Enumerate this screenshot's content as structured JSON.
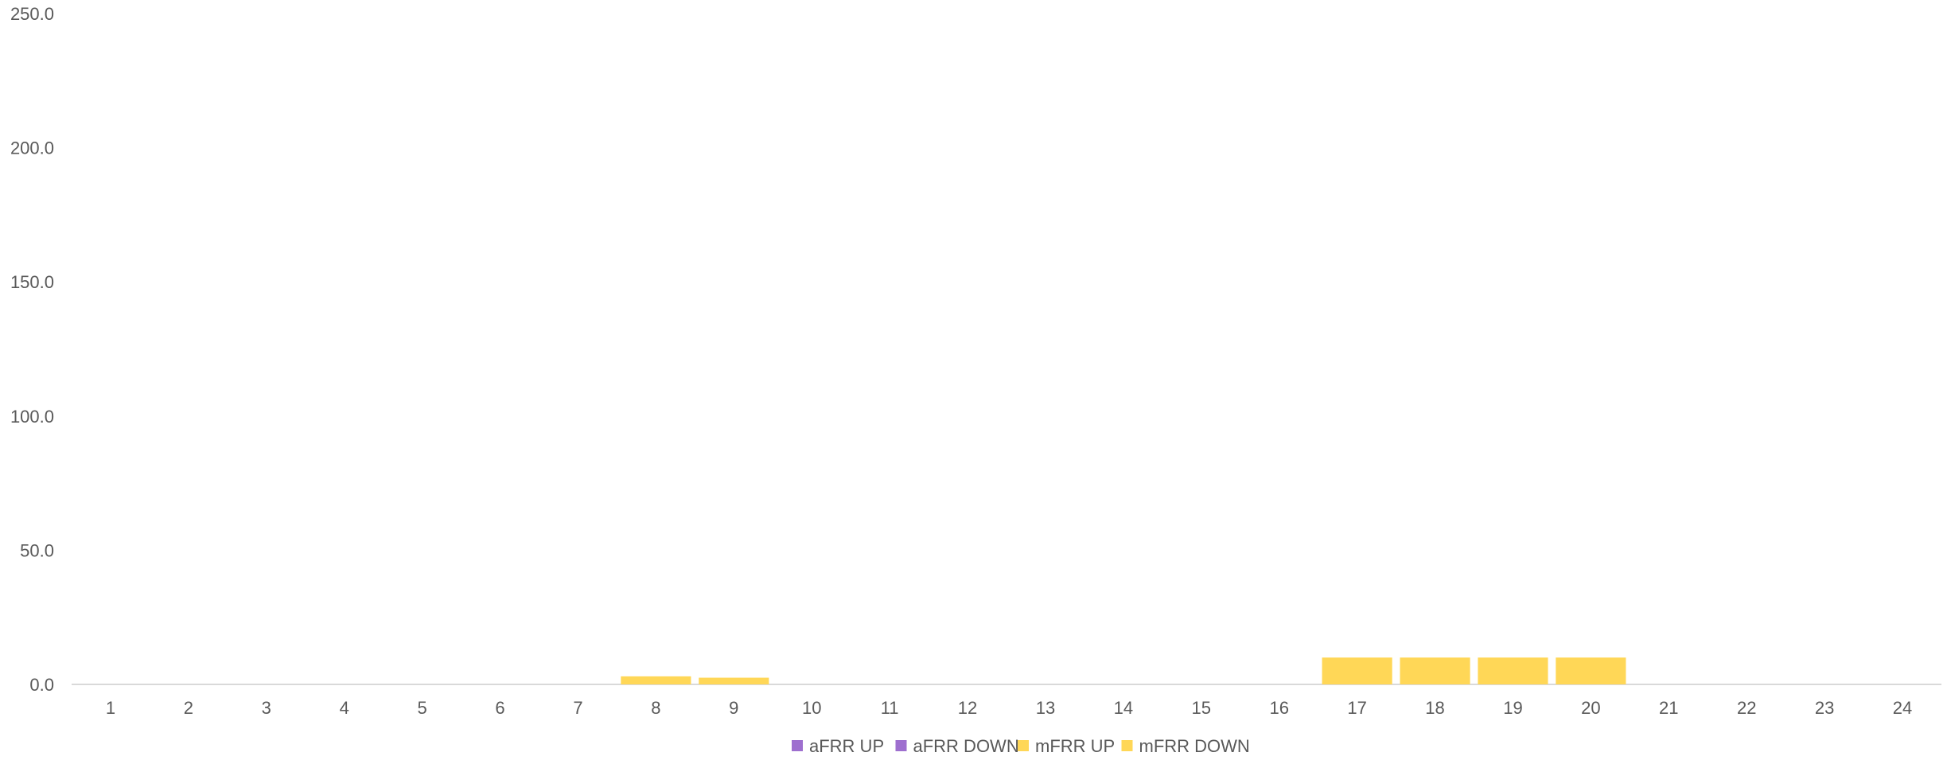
{
  "chart_data": {
    "type": "bar",
    "stacked": true,
    "categories": [
      "1",
      "2",
      "3",
      "4",
      "5",
      "6",
      "7",
      "8",
      "9",
      "10",
      "11",
      "12",
      "13",
      "14",
      "15",
      "16",
      "17",
      "18",
      "19",
      "20",
      "21",
      "22",
      "23",
      "24"
    ],
    "series": [
      {
        "name": "aFRR UP",
        "color": "#9e6fcf",
        "values": [
          0,
          0,
          0,
          0,
          0,
          0,
          0,
          0,
          0,
          0,
          0,
          0,
          0,
          0,
          0,
          0,
          0,
          0,
          0,
          0,
          0,
          0,
          0,
          0
        ]
      },
      {
        "name": "aFRR DOWN",
        "color": "#9e6fcf",
        "values": [
          0,
          0,
          0,
          0,
          0,
          0,
          0,
          0,
          0,
          0,
          0,
          0,
          0,
          0,
          0,
          0,
          0,
          0,
          0,
          0,
          0,
          0,
          0,
          0
        ]
      },
      {
        "name": "mFRR UP",
        "color": "#ffd757",
        "values": [
          0,
          0,
          0,
          0,
          0,
          0,
          0,
          3.0,
          2.5,
          0,
          0,
          0,
          0,
          0,
          0,
          0,
          10.0,
          10.0,
          10.0,
          10.0,
          0,
          0,
          0,
          0
        ]
      },
      {
        "name": "mFRR DOWN",
        "color": "#ffd757",
        "values": [
          0,
          0,
          0,
          0,
          0,
          0,
          0,
          0,
          0,
          0,
          0,
          0,
          0,
          0,
          0,
          0,
          0,
          0,
          0,
          0,
          0,
          0,
          0,
          0
        ]
      }
    ],
    "yticks": [
      "0.0",
      "50.0",
      "100.0",
      "150.0",
      "200.0",
      "250.0"
    ],
    "ylim": [
      0,
      250
    ],
    "grid": false,
    "legend_position": "bottom"
  }
}
